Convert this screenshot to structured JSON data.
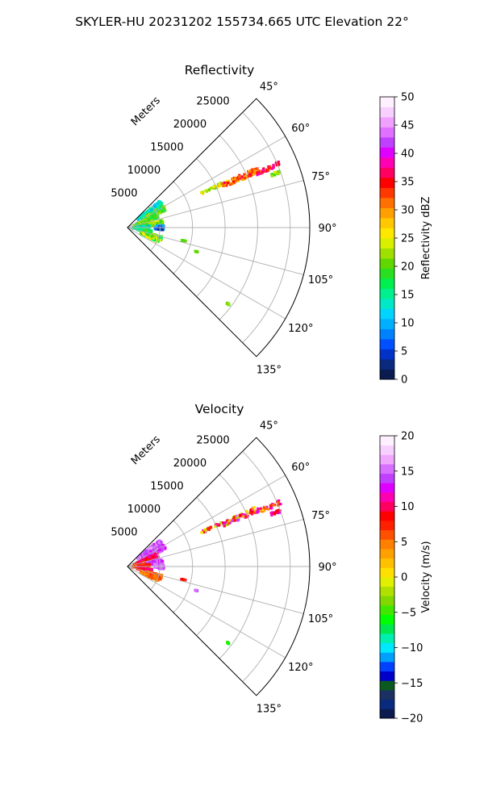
{
  "suptitle": "SKYLER-HU  20231202  155734.665 UTC Elevation 22°",
  "chart_data": [
    {
      "type": "heatmap",
      "subtype": "polar-sector-ppi",
      "title": "Reflectivity",
      "azimuth_range_deg": [
        45,
        135
      ],
      "azimuth_ticks": [
        "45°",
        "60°",
        "75°",
        "90°",
        "105°",
        "120°",
        "135°"
      ],
      "range_max_m": 28000,
      "range_ticks": [
        "5000",
        "10000",
        "15000",
        "20000",
        "25000"
      ],
      "range_axis_label": "Meters",
      "grid": true,
      "colorbar": {
        "label": "Reflectivity dBZ",
        "vmin": 0,
        "vmax": 50,
        "ticks": [
          "0",
          "5",
          "10",
          "15",
          "20",
          "25",
          "30",
          "35",
          "40",
          "45",
          "50"
        ],
        "colors": [
          "#0b1a4f",
          "#0a2a80",
          "#0032c8",
          "#0050ff",
          "#0082ff",
          "#00b0ff",
          "#00d4ff",
          "#00e8c8",
          "#00f090",
          "#00f050",
          "#28e020",
          "#60d800",
          "#a0e000",
          "#d8f000",
          "#ffe800",
          "#ffc800",
          "#ffa000",
          "#ff7000",
          "#ff3800",
          "#ff0000",
          "#ff0060",
          "#ff00b4",
          "#e000ff",
          "#c040ff",
          "#e070ff",
          "#f0a0ff",
          "#f8d0ff",
          "#fff0ff"
        ]
      },
      "echoes": [
        {
          "az": [
            50,
            56
          ],
          "r": [
            2000,
            6500
          ],
          "v": [
            10,
            17
          ]
        },
        {
          "az": [
            58,
            66
          ],
          "r": [
            2500,
            6500
          ],
          "v": [
            14,
            24
          ]
        },
        {
          "az": [
            66,
            74
          ],
          "r": [
            1500,
            5000
          ],
          "v": [
            16,
            24
          ]
        },
        {
          "az": [
            74,
            80
          ],
          "r": [
            1000,
            4000
          ],
          "v": [
            17,
            25
          ]
        },
        {
          "az": [
            78,
            86
          ],
          "r": [
            3000,
            5500
          ],
          "v": [
            18,
            26
          ]
        },
        {
          "az": [
            84,
            90
          ],
          "r": [
            1000,
            3500
          ],
          "v": [
            8,
            22
          ]
        },
        {
          "az": [
            86,
            94
          ],
          "r": [
            4200,
            5600
          ],
          "v": [
            3,
            12
          ]
        },
        {
          "az": [
            90,
            98
          ],
          "r": [
            800,
            3200
          ],
          "v": [
            12,
            22
          ]
        },
        {
          "az": [
            96,
            104
          ],
          "r": [
            1500,
            3800
          ],
          "v": [
            12,
            20
          ]
        },
        {
          "az": [
            104,
            112
          ],
          "r": [
            3000,
            5500
          ],
          "v": [
            14,
            26
          ]
        },
        {
          "az": [
            108,
            116
          ],
          "r": [
            2200,
            5200
          ],
          "v": [
            15,
            27
          ]
        },
        {
          "az": [
            64.5,
            66
          ],
          "r": [
            12500,
            16000
          ],
          "v": [
            20,
            28
          ]
        },
        {
          "az": [
            65,
            67.5
          ],
          "r": [
            16000,
            22000
          ],
          "v": [
            26,
            37
          ]
        },
        {
          "az": [
            66.5,
            68
          ],
          "r": [
            21500,
            25500
          ],
          "v": [
            33,
            39
          ]
        },
        {
          "az": [
            69.5,
            70.5
          ],
          "r": [
            23500,
            25000
          ],
          "v": [
            18,
            24
          ]
        },
        {
          "az": [
            103,
            103.4
          ],
          "r": [
            8500,
            9200
          ],
          "v": [
            18,
            22
          ]
        },
        {
          "az": [
            109,
            109.4
          ],
          "r": [
            11000,
            11400
          ],
          "v": [
            18,
            22
          ]
        },
        {
          "az": [
            127,
            127.4
          ],
          "r": [
            19200,
            19600
          ],
          "v": [
            18,
            22
          ]
        }
      ]
    },
    {
      "type": "heatmap",
      "subtype": "polar-sector-ppi",
      "title": "Velocity",
      "azimuth_range_deg": [
        45,
        135
      ],
      "azimuth_ticks": [
        "45°",
        "60°",
        "75°",
        "90°",
        "105°",
        "120°",
        "135°"
      ],
      "range_max_m": 28000,
      "range_ticks": [
        "5000",
        "10000",
        "15000",
        "20000",
        "25000"
      ],
      "range_axis_label": "Meters",
      "grid": true,
      "colorbar": {
        "label": "Velocity (m/s)",
        "vmin": -20,
        "vmax": 20,
        "ticks": [
          "−20",
          "−15",
          "−10",
          "−5",
          "0",
          "5",
          "10",
          "15",
          "20"
        ],
        "colors": [
          "#0b1a4f",
          "#0a2a80",
          "#1a3060",
          "#0b5a20",
          "#0000c8",
          "#0040ff",
          "#00a0ff",
          "#00e8ff",
          "#00f0b0",
          "#00e850",
          "#00ff00",
          "#40e800",
          "#80d800",
          "#b0e000",
          "#e0f000",
          "#ffe000",
          "#ffc000",
          "#ffa000",
          "#ff8000",
          "#ff5000",
          "#ff2000",
          "#ff0000",
          "#ff0060",
          "#ff00b0",
          "#e000ff",
          "#c040ff",
          "#d870ff",
          "#f0a8ff",
          "#f8d0ff",
          "#fff0ff"
        ]
      },
      "echoes": [
        {
          "az": [
            50,
            56
          ],
          "r": [
            2000,
            6500
          ],
          "v": [
            13,
            17
          ]
        },
        {
          "az": [
            58,
            66
          ],
          "r": [
            2500,
            6500
          ],
          "v": [
            12,
            16
          ]
        },
        {
          "az": [
            66,
            74
          ],
          "r": [
            1500,
            5000
          ],
          "v": [
            8,
            12
          ]
        },
        {
          "az": [
            74,
            80
          ],
          "r": [
            1000,
            4000
          ],
          "v": [
            6,
            11
          ]
        },
        {
          "az": [
            78,
            86
          ],
          "r": [
            3000,
            5500
          ],
          "v": [
            12,
            16
          ]
        },
        {
          "az": [
            84,
            90
          ],
          "r": [
            1000,
            3500
          ],
          "v": [
            5,
            10
          ]
        },
        {
          "az": [
            86,
            94
          ],
          "r": [
            4200,
            5600
          ],
          "v": [
            12,
            17
          ]
        },
        {
          "az": [
            90,
            98
          ],
          "r": [
            800,
            3200
          ],
          "v": [
            4,
            9
          ]
        },
        {
          "az": [
            96,
            104
          ],
          "r": [
            1500,
            3800
          ],
          "v": [
            7,
            12
          ]
        },
        {
          "az": [
            104,
            112
          ],
          "r": [
            3000,
            5500
          ],
          "v": [
            4,
            8
          ]
        },
        {
          "az": [
            108,
            116
          ],
          "r": [
            2200,
            5200
          ],
          "v": [
            3,
            7
          ]
        },
        {
          "az": [
            64.5,
            66
          ],
          "r": [
            12500,
            16000
          ],
          "v": [
            -2,
            14
          ]
        },
        {
          "az": [
            65,
            67.5
          ],
          "r": [
            16000,
            22000
          ],
          "v": [
            -3,
            16
          ]
        },
        {
          "az": [
            66.5,
            68
          ],
          "r": [
            21500,
            25500
          ],
          "v": [
            0,
            14
          ]
        },
        {
          "az": [
            69.5,
            70.5
          ],
          "r": [
            23500,
            25000
          ],
          "v": [
            8,
            13
          ]
        },
        {
          "az": [
            103,
            103.4
          ],
          "r": [
            8500,
            9200
          ],
          "v": [
            6,
            10
          ]
        },
        {
          "az": [
            109,
            109.4
          ],
          "r": [
            11000,
            11400
          ],
          "v": [
            13,
            16
          ]
        },
        {
          "az": [
            127,
            127.4
          ],
          "r": [
            19200,
            19600
          ],
          "v": [
            -8,
            -4
          ]
        }
      ]
    }
  ]
}
